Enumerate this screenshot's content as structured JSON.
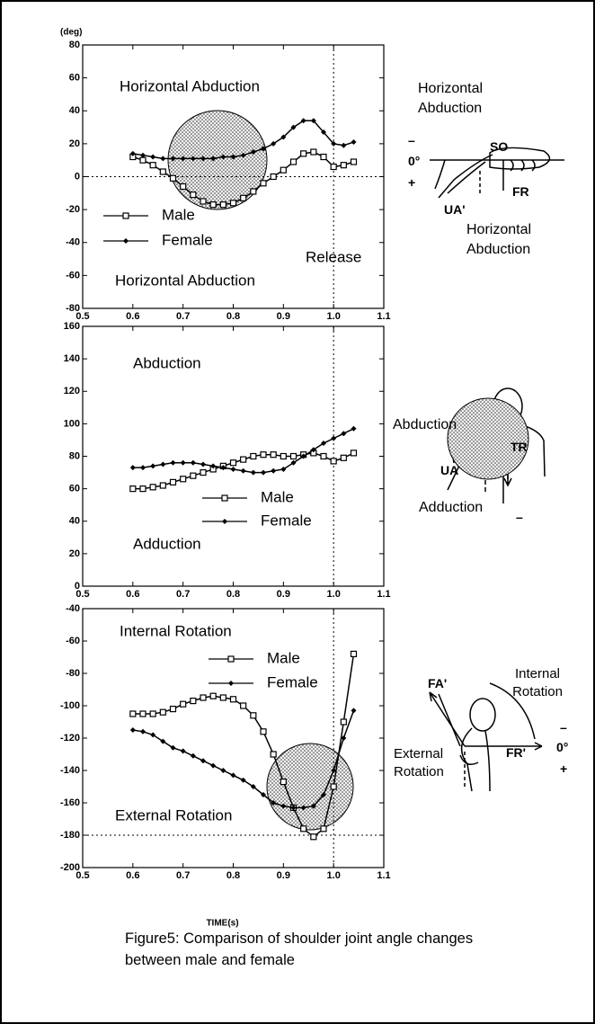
{
  "chart_data": [
    {
      "type": "line",
      "y_label": "(deg)",
      "annotations": [
        "Horizontal Abduction",
        "Horizontal Abduction",
        "Release"
      ],
      "x": [
        0.6,
        0.62,
        0.64,
        0.66,
        0.68,
        0.7,
        0.72,
        0.74,
        0.76,
        0.78,
        0.8,
        0.82,
        0.84,
        0.86,
        0.88,
        0.9,
        0.92,
        0.94,
        0.96,
        0.98,
        1.0,
        1.02,
        1.04
      ],
      "series": [
        {
          "name": "Male",
          "color": "#000000",
          "marker": "square",
          "values": [
            12,
            10,
            7,
            3,
            -1,
            -6,
            -11,
            -15,
            -17,
            -17,
            -16,
            -13,
            -9,
            -4,
            0,
            4,
            9,
            14,
            15,
            12,
            6,
            7,
            9
          ]
        },
        {
          "name": "Female",
          "color": "#000000",
          "marker": "diamond",
          "values": [
            14,
            13,
            12,
            11,
            11,
            11,
            11,
            11,
            11,
            12,
            12,
            13,
            15,
            17,
            20,
            24,
            30,
            34,
            34,
            27,
            20,
            19,
            21
          ]
        }
      ],
      "xlim": [
        0.5,
        1.1
      ],
      "xticks": [
        0.5,
        0.6,
        0.7,
        0.8,
        0.9,
        {
          "value": 1,
          "label": "1.0"
        },
        1.1
      ],
      "ylim": [
        -80,
        80
      ],
      "yticks": [
        -80,
        -60,
        -40,
        -20,
        0,
        20,
        40,
        60,
        80
      ],
      "ref_x": [
        1
      ],
      "ref_y": [
        0
      ]
    },
    {
      "type": "line",
      "annotations": [
        "Abduction",
        "Adduction"
      ],
      "x": [
        0.6,
        0.62,
        0.64,
        0.66,
        0.68,
        0.7,
        0.72,
        0.74,
        0.76,
        0.78,
        0.8,
        0.82,
        0.84,
        0.86,
        0.88,
        0.9,
        0.92,
        0.94,
        0.96,
        0.98,
        1.0,
        1.02,
        1.04
      ],
      "series": [
        {
          "name": "Male",
          "color": "#000000",
          "marker": "square",
          "values": [
            60,
            60,
            61,
            62,
            64,
            66,
            68,
            70,
            72,
            74,
            76,
            78,
            80,
            81,
            81,
            80,
            80,
            81,
            82,
            80,
            77,
            79,
            82
          ]
        },
        {
          "name": "Female",
          "color": "#000000",
          "marker": "diamond",
          "values": [
            73,
            73,
            74,
            75,
            76,
            76,
            76,
            75,
            74,
            73,
            72,
            71,
            70,
            70,
            71,
            72,
            76,
            80,
            84,
            88,
            91,
            94,
            97
          ]
        }
      ],
      "xlim": [
        0.5,
        1.1
      ],
      "xticks": [
        0.5,
        0.6,
        0.7,
        0.8,
        0.9,
        {
          "value": 1,
          "label": "1.0"
        },
        1.1
      ],
      "ylim": [
        0,
        160
      ],
      "yticks": [
        0,
        20,
        40,
        60,
        80,
        100,
        120,
        140,
        160
      ],
      "ref_x": [
        1
      ]
    },
    {
      "type": "line",
      "x_label": "TIME(s)",
      "annotations": [
        "Internal Rotation",
        "External Rotation"
      ],
      "x": [
        0.6,
        0.62,
        0.64,
        0.66,
        0.68,
        0.7,
        0.72,
        0.74,
        0.76,
        0.78,
        0.8,
        0.82,
        0.84,
        0.86,
        0.88,
        0.9,
        0.92,
        0.94,
        0.96,
        0.98,
        1.0,
        1.02,
        1.04
      ],
      "series": [
        {
          "name": "Male",
          "color": "#000000",
          "marker": "square",
          "values": [
            -105,
            -105,
            -105,
            -104,
            -102,
            -99,
            -97,
            -95,
            -94,
            -95,
            -96,
            -100,
            -106,
            -116,
            -130,
            -147,
            -163,
            -176,
            -181,
            -176,
            -150,
            -110,
            -68
          ]
        },
        {
          "name": "Female",
          "color": "#000000",
          "marker": "diamond",
          "values": [
            -115,
            -116,
            -118,
            -122,
            -126,
            -128,
            -131,
            -134,
            -137,
            -140,
            -143,
            -146,
            -150,
            -155,
            -160,
            -162,
            -163,
            -163,
            -162,
            -155,
            -140,
            -120,
            -103
          ]
        }
      ],
      "xlim": [
        0.5,
        1.1
      ],
      "xticks": [
        0.5,
        0.6,
        0.7,
        0.8,
        0.9,
        {
          "value": 1,
          "label": "1.0"
        },
        1.1
      ],
      "ylim": [
        -200,
        -40
      ],
      "yticks": [
        -200,
        -180,
        -160,
        -140,
        -120,
        -100,
        -80,
        -60,
        -40
      ],
      "ref_x": [
        1
      ],
      "ref_y": [
        -180
      ]
    }
  ],
  "diagrams": [
    {
      "labels": [
        "Horizontal Abduction",
        "–",
        "0°",
        "+",
        "SO",
        "FR",
        "UA'",
        "Horizontal Abduction"
      ]
    },
    {
      "labels": [
        "Abduction",
        "UA",
        "TR",
        "Adduction",
        "–"
      ]
    },
    {
      "labels": [
        "FA'",
        "Internal Rotation",
        "External Rotation",
        "FR'",
        "0°",
        "–",
        "+"
      ]
    }
  ],
  "caption": "Figure5: Comparison of shoulder joint angle changes between male and female"
}
